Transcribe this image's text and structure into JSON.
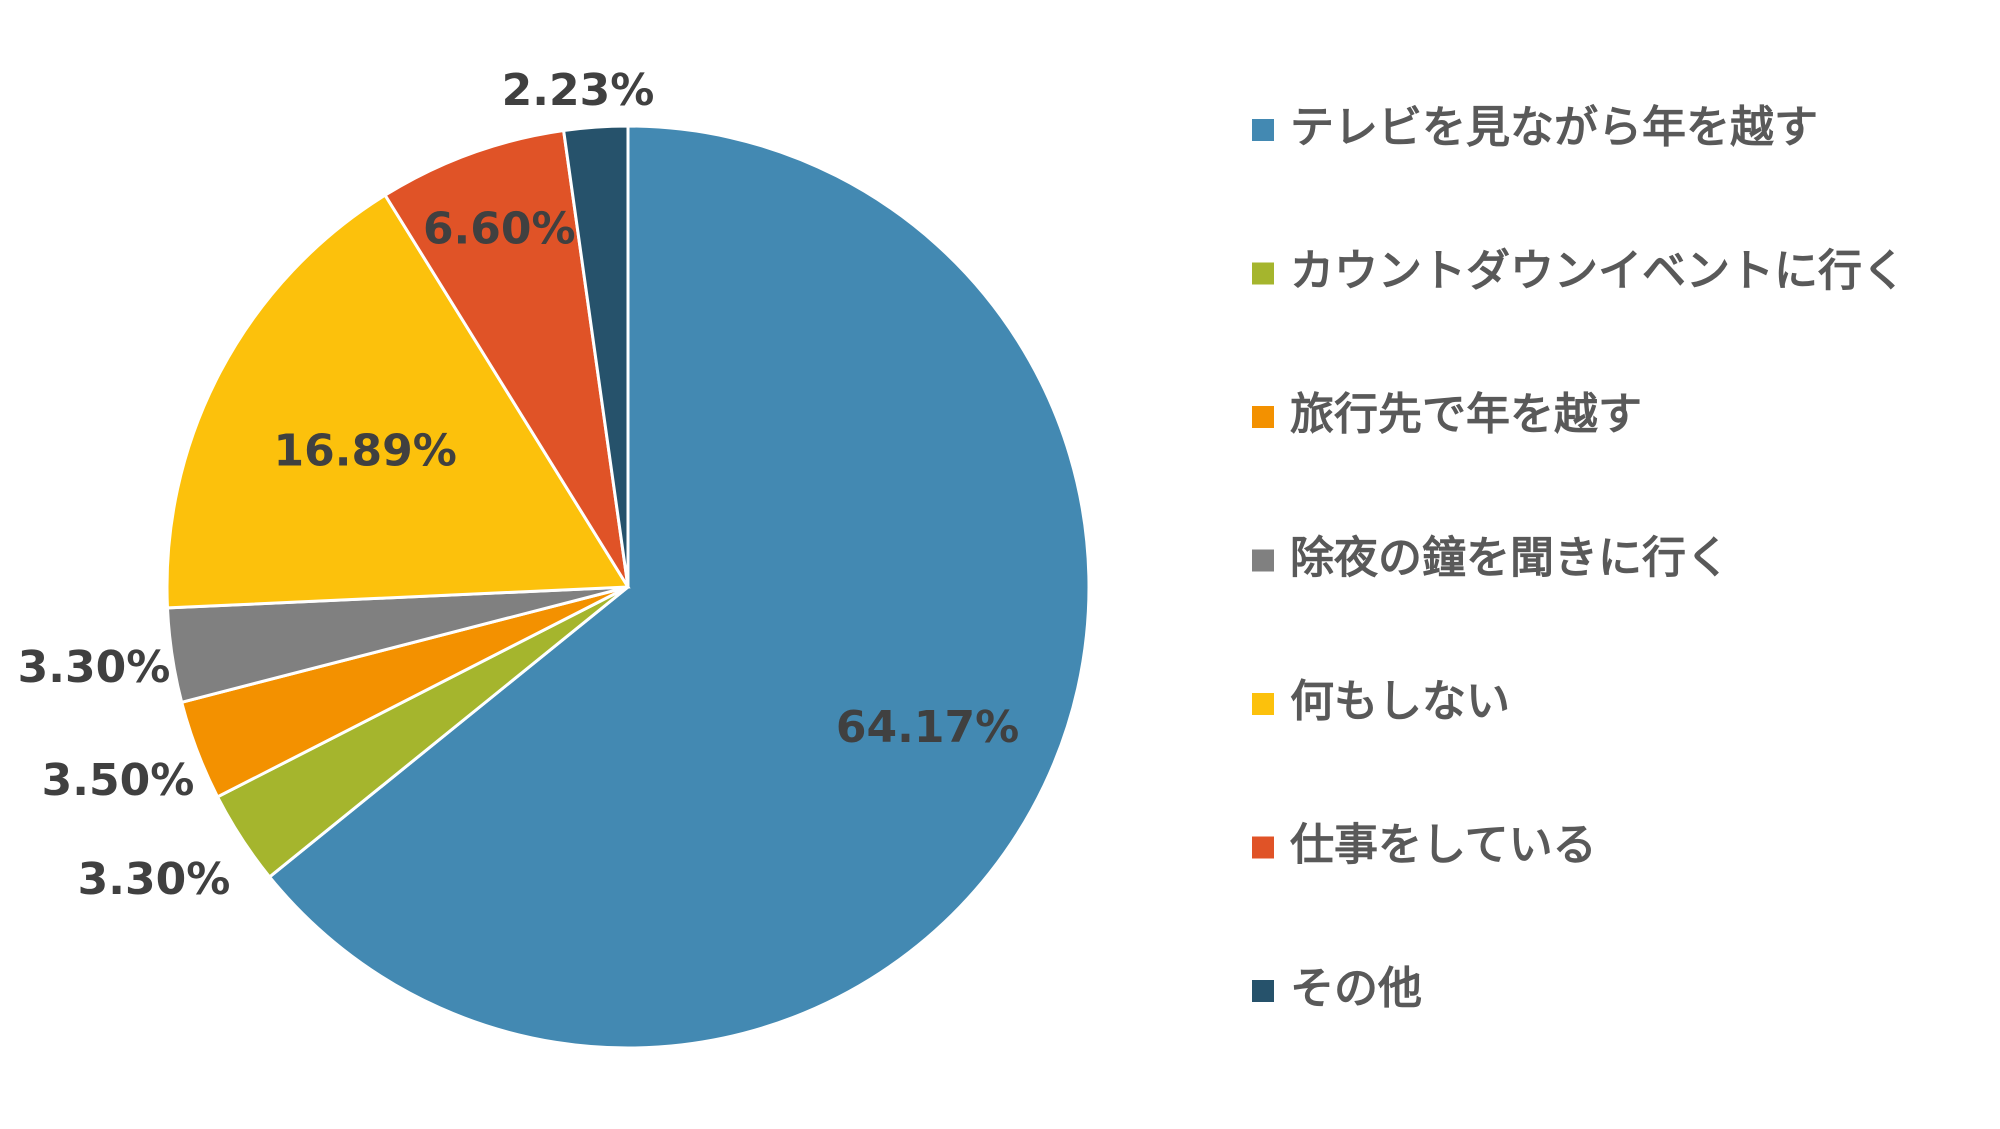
{
  "chart_data": {
    "type": "pie",
    "title": "",
    "series": [
      {
        "values": [
          64.17,
          3.3,
          3.5,
          3.3,
          16.89,
          6.6,
          2.23
        ]
      }
    ],
    "categories": [
      "テレビを見ながら年を越す",
      "カウントダウンイベントに行く",
      "旅行先で年を越す",
      "除夜の鐘を聞きに行く",
      "何もしない",
      "仕事をしている",
      "その他"
    ],
    "values": [
      64.17,
      3.3,
      3.5,
      3.3,
      16.89,
      6.6,
      2.23
    ],
    "data_labels": [
      "64.17%",
      "3.30%",
      "3.50%",
      "3.30%",
      "16.89%",
      "6.60%",
      "2.23%"
    ],
    "colors": [
      "#4389B2",
      "#A5B52D",
      "#F39100",
      "#808080",
      "#FCC10C",
      "#E05327",
      "#26526B"
    ],
    "legend_position": "right",
    "start_angle": "12 o'clock",
    "direction": "clockwise"
  }
}
